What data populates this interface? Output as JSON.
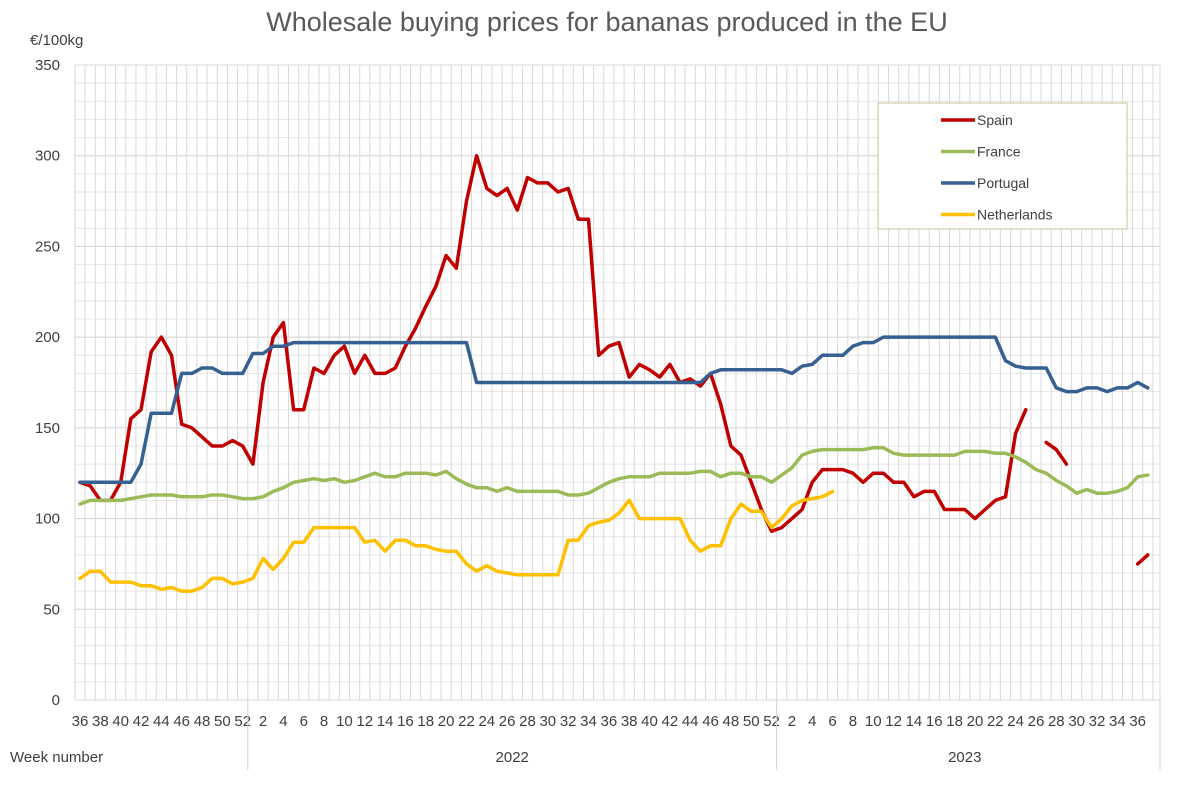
{
  "chart_data": {
    "type": "line",
    "title": "Wholesale buying prices for bananas produced in the EU",
    "ylabel": "€/100kg",
    "xlabel": "Week number",
    "ylim": [
      0,
      350
    ],
    "yticks": [
      0,
      50,
      100,
      150,
      200,
      250,
      300,
      350
    ],
    "grid": true,
    "legend_position": "top-right",
    "year_segments": [
      {
        "year": "",
        "from_week": 36,
        "to_week": 52
      },
      {
        "year": "2022",
        "from_week": 1,
        "to_week": 52
      },
      {
        "year": "2023",
        "from_week": 1,
        "to_week": 37
      }
    ],
    "series": [
      {
        "name": "Spain",
        "color": "#C00000",
        "values": [
          120,
          118,
          110,
          110,
          120,
          155,
          160,
          192,
          200,
          190,
          152,
          150,
          145,
          140,
          140,
          143,
          140,
          130,
          175,
          200,
          208,
          160,
          160,
          183,
          180,
          190,
          195,
          180,
          190,
          180,
          180,
          183,
          195,
          205,
          217,
          228,
          245,
          238,
          275,
          300,
          282,
          278,
          282,
          270,
          288,
          285,
          285,
          280,
          282,
          265,
          265,
          190,
          195,
          197,
          178,
          185,
          182,
          178,
          185,
          175,
          177,
          173,
          180,
          163,
          140,
          135,
          120,
          105,
          93,
          95,
          100,
          105,
          120,
          127,
          127,
          127,
          125,
          120,
          125,
          125,
          120,
          120,
          112,
          115,
          115,
          105,
          105,
          105,
          100,
          105,
          110,
          112,
          147,
          160,
          null,
          142,
          138,
          130,
          null,
          null,
          null,
          null,
          null,
          null,
          75,
          80
        ]
      },
      {
        "name": "France",
        "color": "#9BBB59",
        "values": [
          108,
          110,
          110,
          110,
          110,
          111,
          112,
          113,
          113,
          113,
          112,
          112,
          112,
          113,
          113,
          112,
          111,
          111,
          112,
          115,
          117,
          120,
          121,
          122,
          121,
          122,
          120,
          121,
          123,
          125,
          123,
          123,
          125,
          125,
          125,
          124,
          126,
          122,
          119,
          117,
          117,
          115,
          117,
          115,
          115,
          115,
          115,
          115,
          113,
          113,
          114,
          117,
          120,
          122,
          123,
          123,
          123,
          125,
          125,
          125,
          125,
          126,
          126,
          123,
          125,
          125,
          123,
          123,
          120,
          124,
          128,
          135,
          137,
          138,
          138,
          138,
          138,
          138,
          139,
          139,
          136,
          135,
          135,
          135,
          135,
          135,
          135,
          137,
          137,
          137,
          136,
          136,
          134,
          131,
          127,
          125,
          121,
          118,
          114,
          116,
          114,
          114,
          115,
          117,
          123,
          124
        ]
      },
      {
        "name": "Portugal",
        "color": "#366092",
        "values": [
          120,
          120,
          120,
          120,
          120,
          120,
          130,
          158,
          158,
          158,
          180,
          180,
          183,
          183,
          180,
          180,
          180,
          191,
          191,
          195,
          195,
          197,
          197,
          197,
          197,
          197,
          197,
          197,
          197,
          197,
          197,
          197,
          197,
          197,
          197,
          197,
          197,
          197,
          197,
          175,
          175,
          175,
          175,
          175,
          175,
          175,
          175,
          175,
          175,
          175,
          175,
          175,
          175,
          175,
          175,
          175,
          175,
          175,
          175,
          175,
          175,
          175,
          180,
          182,
          182,
          182,
          182,
          182,
          182,
          182,
          180,
          184,
          185,
          190,
          190,
          190,
          195,
          197,
          197,
          200,
          200,
          200,
          200,
          200,
          200,
          200,
          200,
          200,
          200,
          200,
          200,
          187,
          184,
          183,
          183,
          183,
          172,
          170,
          170,
          172,
          172,
          170,
          172,
          172,
          175,
          172
        ]
      },
      {
        "name": "Netherlands",
        "color": "#FFC000",
        "values": [
          67,
          71,
          71,
          65,
          65,
          65,
          63,
          63,
          61,
          62,
          60,
          60,
          62,
          67,
          67,
          64,
          65,
          67,
          78,
          72,
          78,
          87,
          87,
          95,
          95,
          95,
          95,
          95,
          87,
          88,
          82,
          88,
          88,
          85,
          85,
          83,
          82,
          82,
          75,
          71,
          74,
          71,
          70,
          69,
          69,
          69,
          69,
          69,
          88,
          88,
          96,
          98,
          99,
          103,
          110,
          100,
          100,
          100,
          100,
          100,
          88,
          82,
          85,
          85,
          100,
          108,
          104,
          104,
          95,
          100,
          107,
          110,
          111,
          112,
          115,
          null,
          null,
          null,
          null,
          null,
          null,
          null,
          null,
          null,
          null,
          null,
          null,
          null,
          null,
          null,
          null,
          null,
          null,
          null,
          null,
          null,
          null,
          null,
          null,
          null,
          null,
          null,
          null,
          null,
          null,
          null
        ]
      }
    ]
  }
}
